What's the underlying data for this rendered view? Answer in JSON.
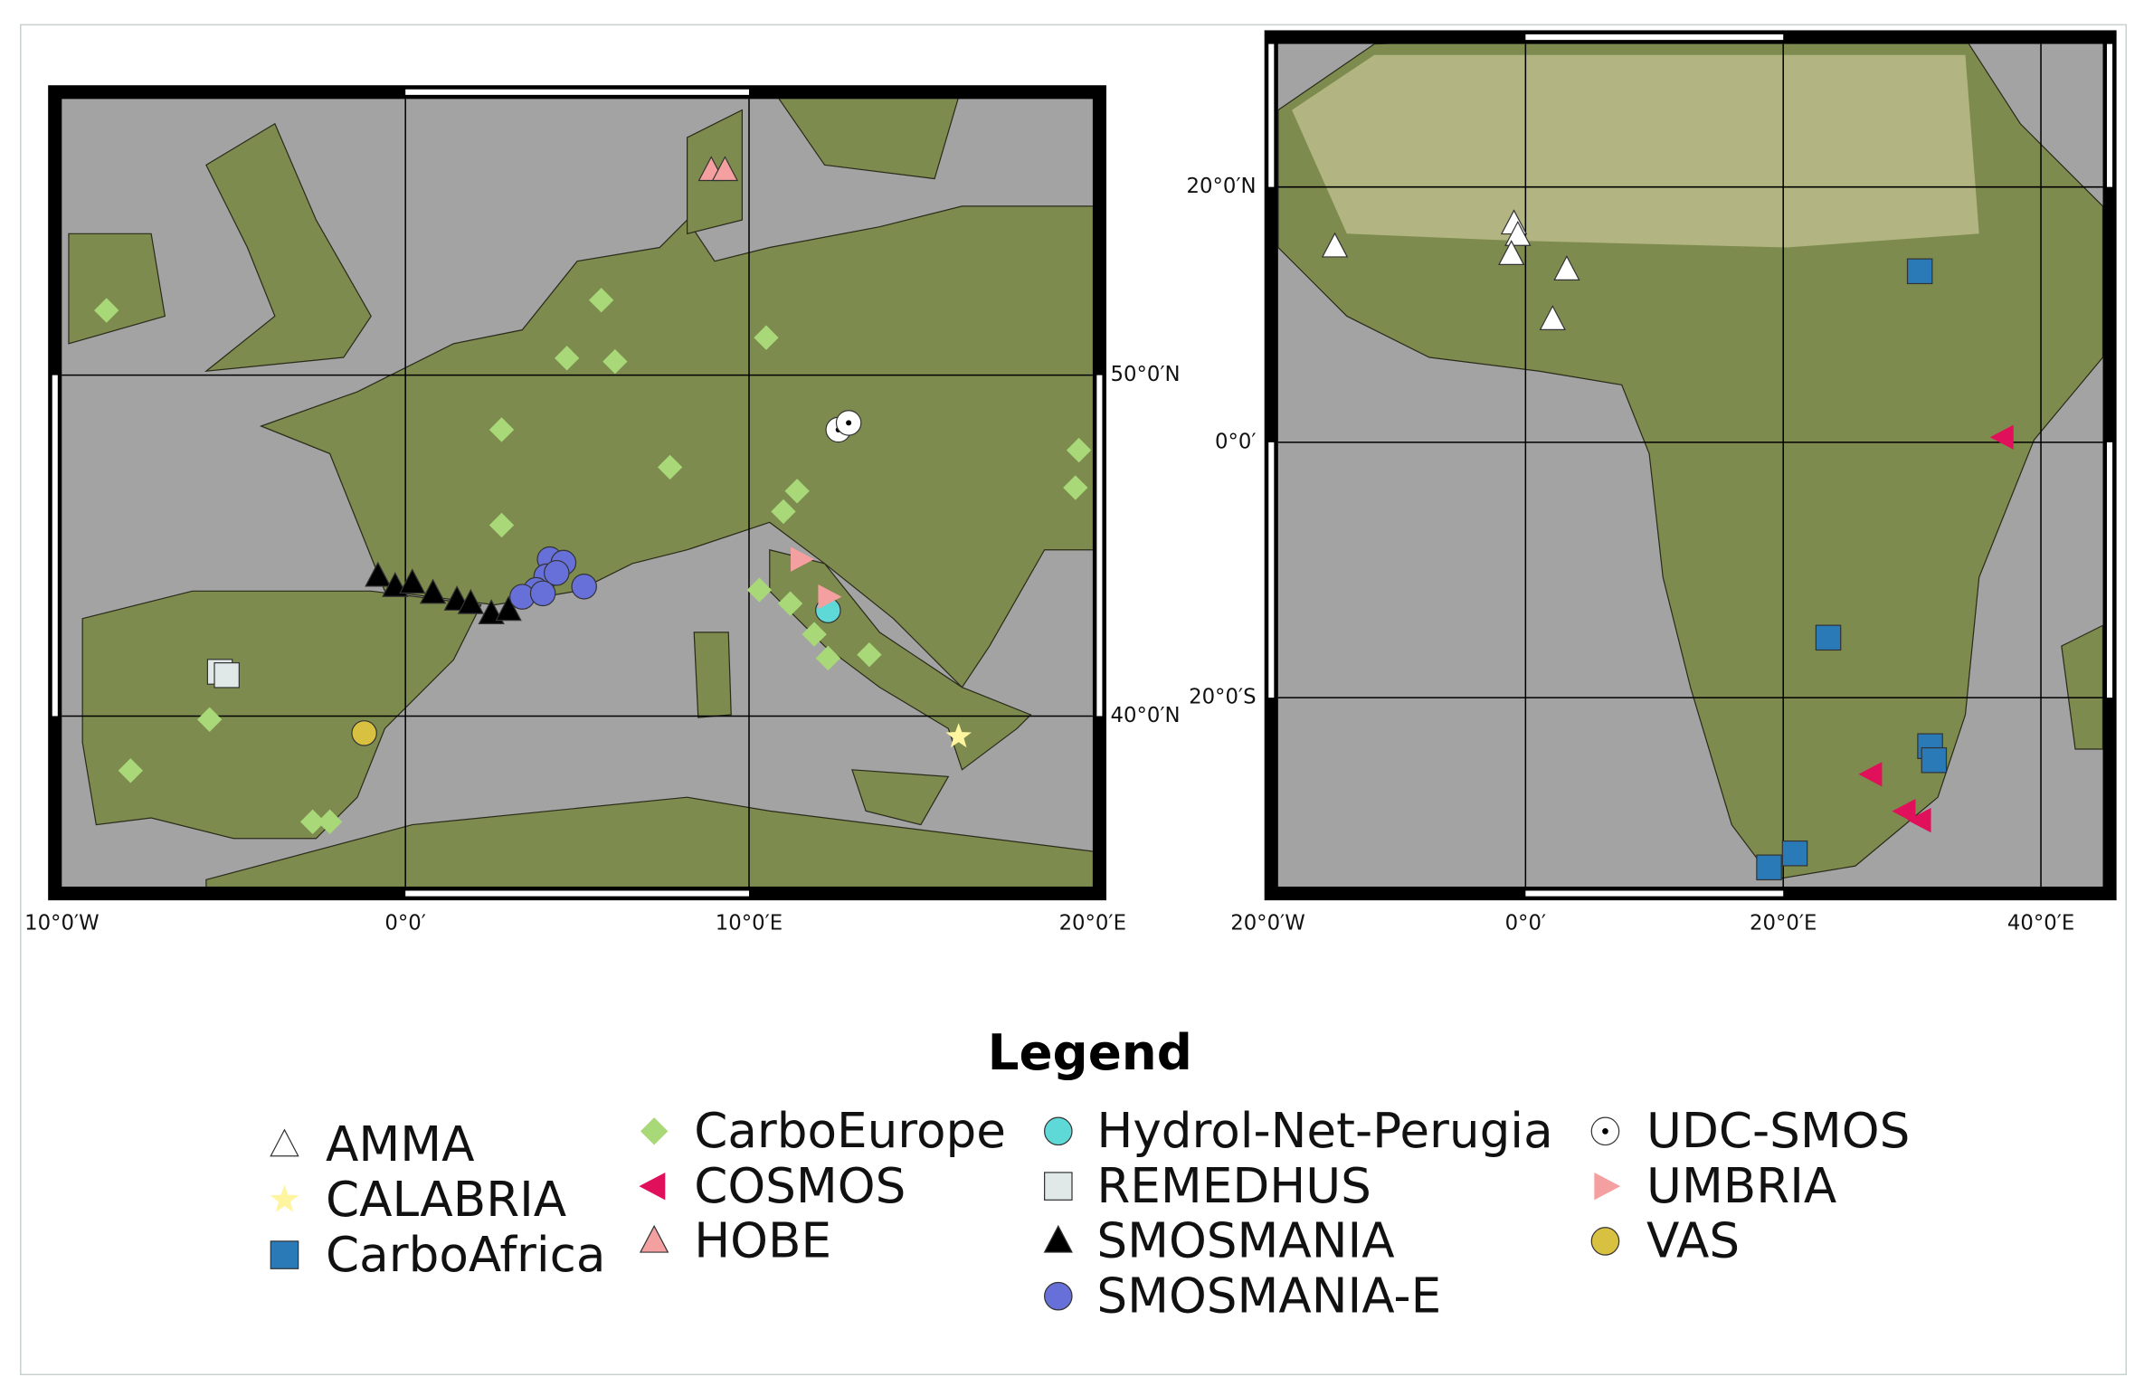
{
  "maps": [
    {
      "lonlim": [
        -10,
        20
      ],
      "latlim": [
        35,
        58.1
      ],
      "xticks": [
        {
          "value": -10,
          "label": "10°0′W"
        },
        {
          "value": 0,
          "label": "0°0′"
        },
        {
          "value": 10,
          "label": "10°0′E"
        },
        {
          "value": 20,
          "label": "20°0′E"
        }
      ],
      "yticks": [
        {
          "value": 50,
          "label": "50°0′N"
        },
        {
          "value": 40,
          "label": "40°0′N"
        }
      ]
    },
    {
      "lonlim": [
        -19.2,
        44.8
      ],
      "latlim": [
        -34.8,
        31.2
      ],
      "xticks": [
        {
          "value": -20,
          "label": "20°0′W"
        },
        {
          "value": 0,
          "label": "0°0′"
        },
        {
          "value": 20,
          "label": "20°0′E"
        },
        {
          "value": 40,
          "label": "40°0′E"
        }
      ],
      "yticks": [
        {
          "value": 20,
          "label": "20°0′N"
        },
        {
          "value": 0,
          "label": "0°0′"
        },
        {
          "value": -20,
          "label": "20°0′S"
        }
      ]
    }
  ],
  "legend": {
    "title": "Legend",
    "entries": [
      {
        "name": "AMMA",
        "symbol": "triangle",
        "color": "#ffffff",
        "points": [
          [
            -14.8,
            15.3
          ],
          [
            -0.9,
            17.1
          ],
          [
            -0.6,
            16.2
          ],
          [
            -1.1,
            14.7
          ],
          [
            3.2,
            13.5
          ],
          [
            2.1,
            9.6
          ]
        ]
      },
      {
        "name": "CALABRIA",
        "symbol": "star",
        "color": "#fff5a0",
        "points": [
          [
            16.1,
            39.4
          ]
        ]
      },
      {
        "name": "CarboAfrica",
        "symbol": "square",
        "color": "#2a7ab8",
        "points": [
          [
            30.6,
            13.4
          ],
          [
            23.5,
            -15.3
          ],
          [
            31.4,
            -23.8
          ],
          [
            31.7,
            -24.9
          ],
          [
            18.9,
            -33.3
          ],
          [
            20.9,
            -32.2
          ]
        ]
      },
      {
        "name": "CarboEurope",
        "symbol": "diamond",
        "color": "#a8d878",
        "points": [
          [
            -8.7,
            51.9
          ],
          [
            5.7,
            52.2
          ],
          [
            10.5,
            51.1
          ],
          [
            4.7,
            50.5
          ],
          [
            6.1,
            50.4
          ],
          [
            2.8,
            48.4
          ],
          [
            7.7,
            47.3
          ],
          [
            11.4,
            46.6
          ],
          [
            11.0,
            46.0
          ],
          [
            19.6,
            47.8
          ],
          [
            19.5,
            46.7
          ],
          [
            2.8,
            45.6
          ],
          [
            10.3,
            43.7
          ],
          [
            11.2,
            43.3
          ],
          [
            11.9,
            42.4
          ],
          [
            12.3,
            41.7
          ],
          [
            13.5,
            41.8
          ],
          [
            -5.7,
            39.9
          ],
          [
            -8.0,
            38.4
          ],
          [
            -2.7,
            36.9
          ],
          [
            -2.2,
            36.9
          ]
        ]
      },
      {
        "name": "COSMOS",
        "symbol": "triangle-left",
        "color": "#e0105a",
        "points": [
          [
            37.1,
            0.4
          ],
          [
            26.9,
            -26.0
          ],
          [
            29.5,
            -28.9
          ],
          [
            30.7,
            -29.6
          ]
        ]
      },
      {
        "name": "HOBE",
        "symbol": "triangle",
        "color": "#f4a0a0",
        "points": [
          [
            8.9,
            56.0
          ],
          [
            9.3,
            56.0
          ]
        ]
      },
      {
        "name": "Hydrol-Net-Perugia",
        "symbol": "circle",
        "color": "#5fd8d8",
        "points": [
          [
            12.3,
            43.1
          ]
        ]
      },
      {
        "name": "REMEDHUS",
        "symbol": "square",
        "color": "#e0e8e8",
        "points": [
          [
            -5.4,
            41.3
          ],
          [
            -5.2,
            41.2
          ]
        ]
      },
      {
        "name": "SMOSMANIA",
        "symbol": "triangle",
        "color": "#000000",
        "points": [
          [
            -0.8,
            44.1
          ],
          [
            -0.3,
            43.8
          ],
          [
            0.2,
            43.9
          ],
          [
            0.8,
            43.6
          ],
          [
            1.5,
            43.4
          ],
          [
            1.9,
            43.3
          ],
          [
            2.5,
            43.0
          ],
          [
            3.0,
            43.1
          ]
        ]
      },
      {
        "name": "SMOSMANIA-E",
        "symbol": "circle",
        "color": "#6670d8",
        "points": [
          [
            4.2,
            44.6
          ],
          [
            4.6,
            44.5
          ],
          [
            4.1,
            44.1
          ],
          [
            4.4,
            44.2
          ],
          [
            3.8,
            43.7
          ],
          [
            3.4,
            43.5
          ],
          [
            4.0,
            43.6
          ],
          [
            5.2,
            43.8
          ]
        ]
      },
      {
        "name": "UDC-SMOS",
        "symbol": "circle-dot",
        "color": "#ffffff",
        "points": [
          [
            12.6,
            48.4
          ],
          [
            12.9,
            48.6
          ]
        ]
      },
      {
        "name": "UMBRIA",
        "symbol": "triangle-right",
        "color": "#f4a0a0",
        "points": [
          [
            11.5,
            44.6
          ],
          [
            12.3,
            43.5
          ]
        ]
      },
      {
        "name": "VAS",
        "symbol": "circle",
        "color": "#d8c040",
        "points": [
          [
            -1.2,
            39.5
          ]
        ]
      }
    ]
  }
}
